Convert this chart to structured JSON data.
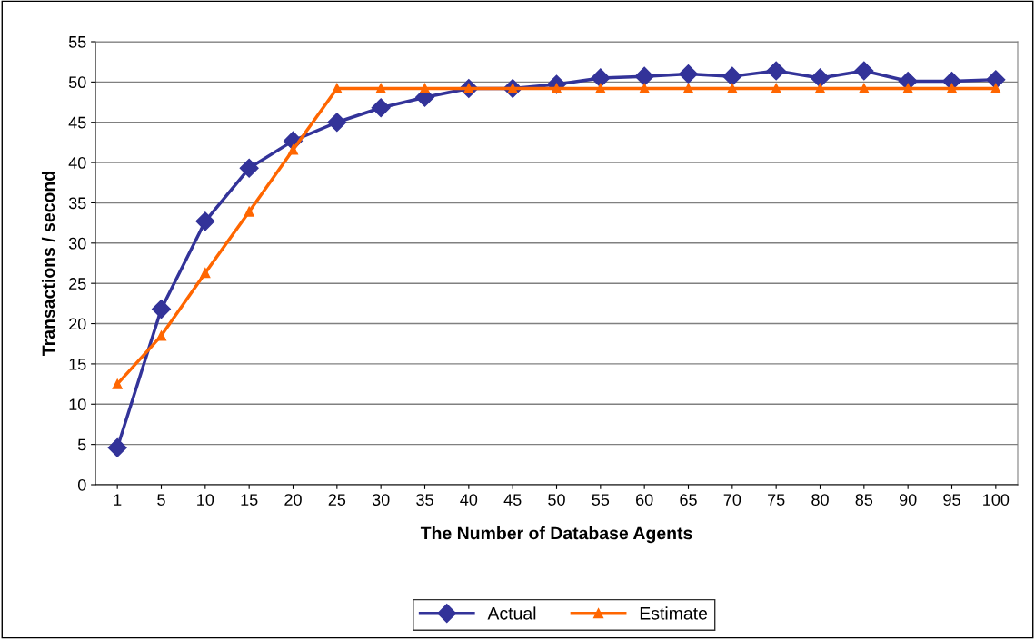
{
  "chart_data": {
    "type": "line",
    "xlabel": "The Number of Database Agents",
    "ylabel": "Transactions / second",
    "categories": [
      "1",
      "5",
      "10",
      "15",
      "20",
      "25",
      "30",
      "35",
      "40",
      "45",
      "50",
      "55",
      "60",
      "65",
      "70",
      "75",
      "80",
      "85",
      "90",
      "95",
      "100"
    ],
    "series": [
      {
        "name": "Actual",
        "color": "#333399",
        "marker": "diamond",
        "values": [
          4.6,
          21.8,
          32.7,
          39.3,
          42.7,
          45.0,
          46.8,
          48.1,
          49.2,
          49.2,
          49.7,
          50.5,
          50.7,
          51.0,
          50.7,
          51.4,
          50.5,
          51.4,
          50.1,
          50.1,
          50.3
        ]
      },
      {
        "name": "Estimate",
        "color": "#ff6600",
        "marker": "triangle",
        "values": [
          12.5,
          18.5,
          26.3,
          33.9,
          41.6,
          49.2,
          49.2,
          49.2,
          49.2,
          49.2,
          49.2,
          49.2,
          49.2,
          49.2,
          49.2,
          49.2,
          49.2,
          49.2,
          49.2,
          49.2,
          49.2
        ]
      }
    ],
    "ylim": [
      0,
      55
    ],
    "yticks": [
      0,
      5,
      10,
      15,
      20,
      25,
      30,
      35,
      40,
      45,
      50,
      55
    ],
    "grid": "y",
    "legend": "bottom"
  }
}
